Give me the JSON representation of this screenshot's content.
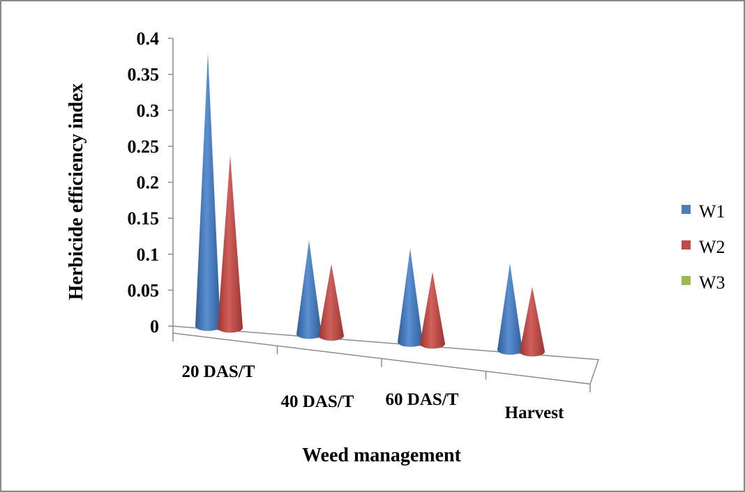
{
  "chart_data": {
    "type": "bar",
    "style": "3d-cone",
    "categories": [
      "20 DAS/T",
      "40 DAS/T",
      "60 DAS/T",
      "Harvest"
    ],
    "series": [
      {
        "name": "W1",
        "values": [
          0.38,
          0.13,
          0.13,
          0.12
        ],
        "color": "#4a7ebb"
      },
      {
        "name": "W2",
        "values": [
          0.24,
          0.1,
          0.1,
          0.09
        ],
        "color": "#be4b48"
      },
      {
        "name": "W3",
        "values": [
          0,
          0,
          0,
          0
        ],
        "color": "#98b954"
      }
    ],
    "xlabel": "Weed management",
    "ylabel": "Herbicide efficiency index",
    "ylim": [
      0,
      0.4
    ],
    "yticks": [
      "0",
      "0.05",
      "0.1",
      "0.15",
      "0.2",
      "0.25",
      "0.3",
      "0.35",
      "0.4"
    ],
    "grid": false,
    "legend": "right"
  }
}
